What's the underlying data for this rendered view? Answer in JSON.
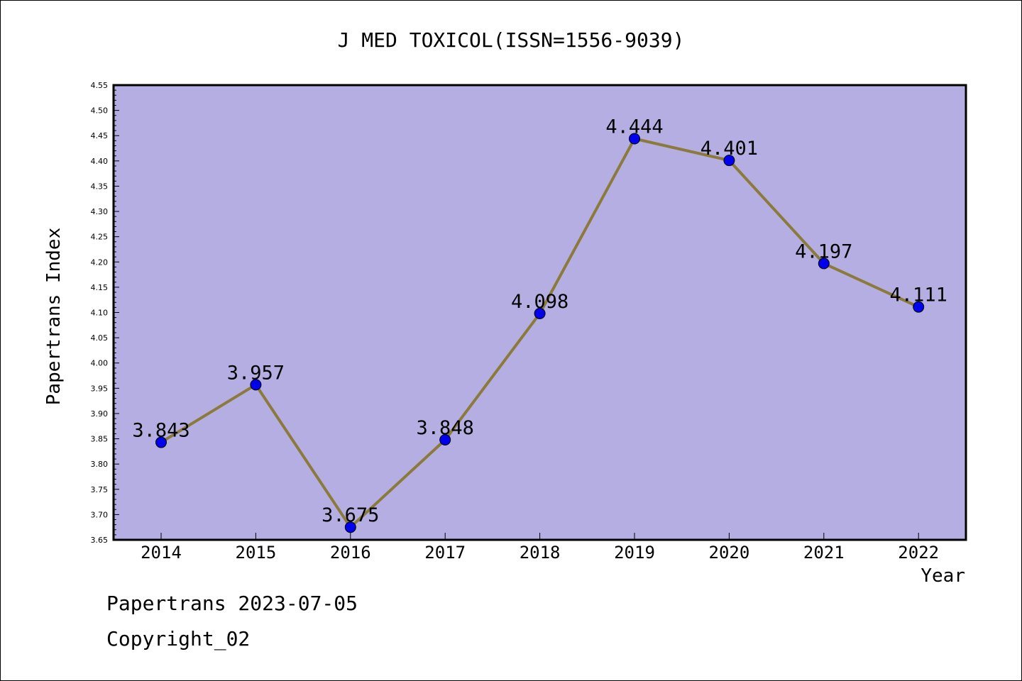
{
  "chart_data": {
    "type": "line",
    "title": "J MED TOXICOL(ISSN=1556-9039)",
    "xlabel": "Year",
    "ylabel": "Papertrans Index",
    "categories": [
      "2014",
      "2015",
      "2016",
      "2017",
      "2018",
      "2019",
      "2020",
      "2021",
      "2022"
    ],
    "values": [
      3.843,
      3.957,
      3.675,
      3.848,
      4.098,
      4.444,
      4.401,
      4.197,
      4.111
    ],
    "data_labels": [
      "3.843",
      "3.957",
      "3.675",
      "3.848",
      "4.098",
      "4.444",
      "4.401",
      "4.197",
      "4.111"
    ],
    "ylim": [
      3.65,
      4.55
    ],
    "yticks": [
      "3.65",
      "3.70",
      "3.75",
      "3.80",
      "3.85",
      "3.90",
      "3.95",
      "4.00",
      "4.05",
      "4.10",
      "4.15",
      "4.20",
      "4.25",
      "4.30",
      "4.35",
      "4.40",
      "4.45",
      "4.50",
      "4.55"
    ],
    "grid": false,
    "colors": {
      "plot_background": "#b5aee2",
      "line": "#8b7a3a",
      "marker": "#0000ee"
    }
  },
  "footer": {
    "line1": "Papertrans 2023-07-05",
    "line2": "Copyright_02"
  }
}
